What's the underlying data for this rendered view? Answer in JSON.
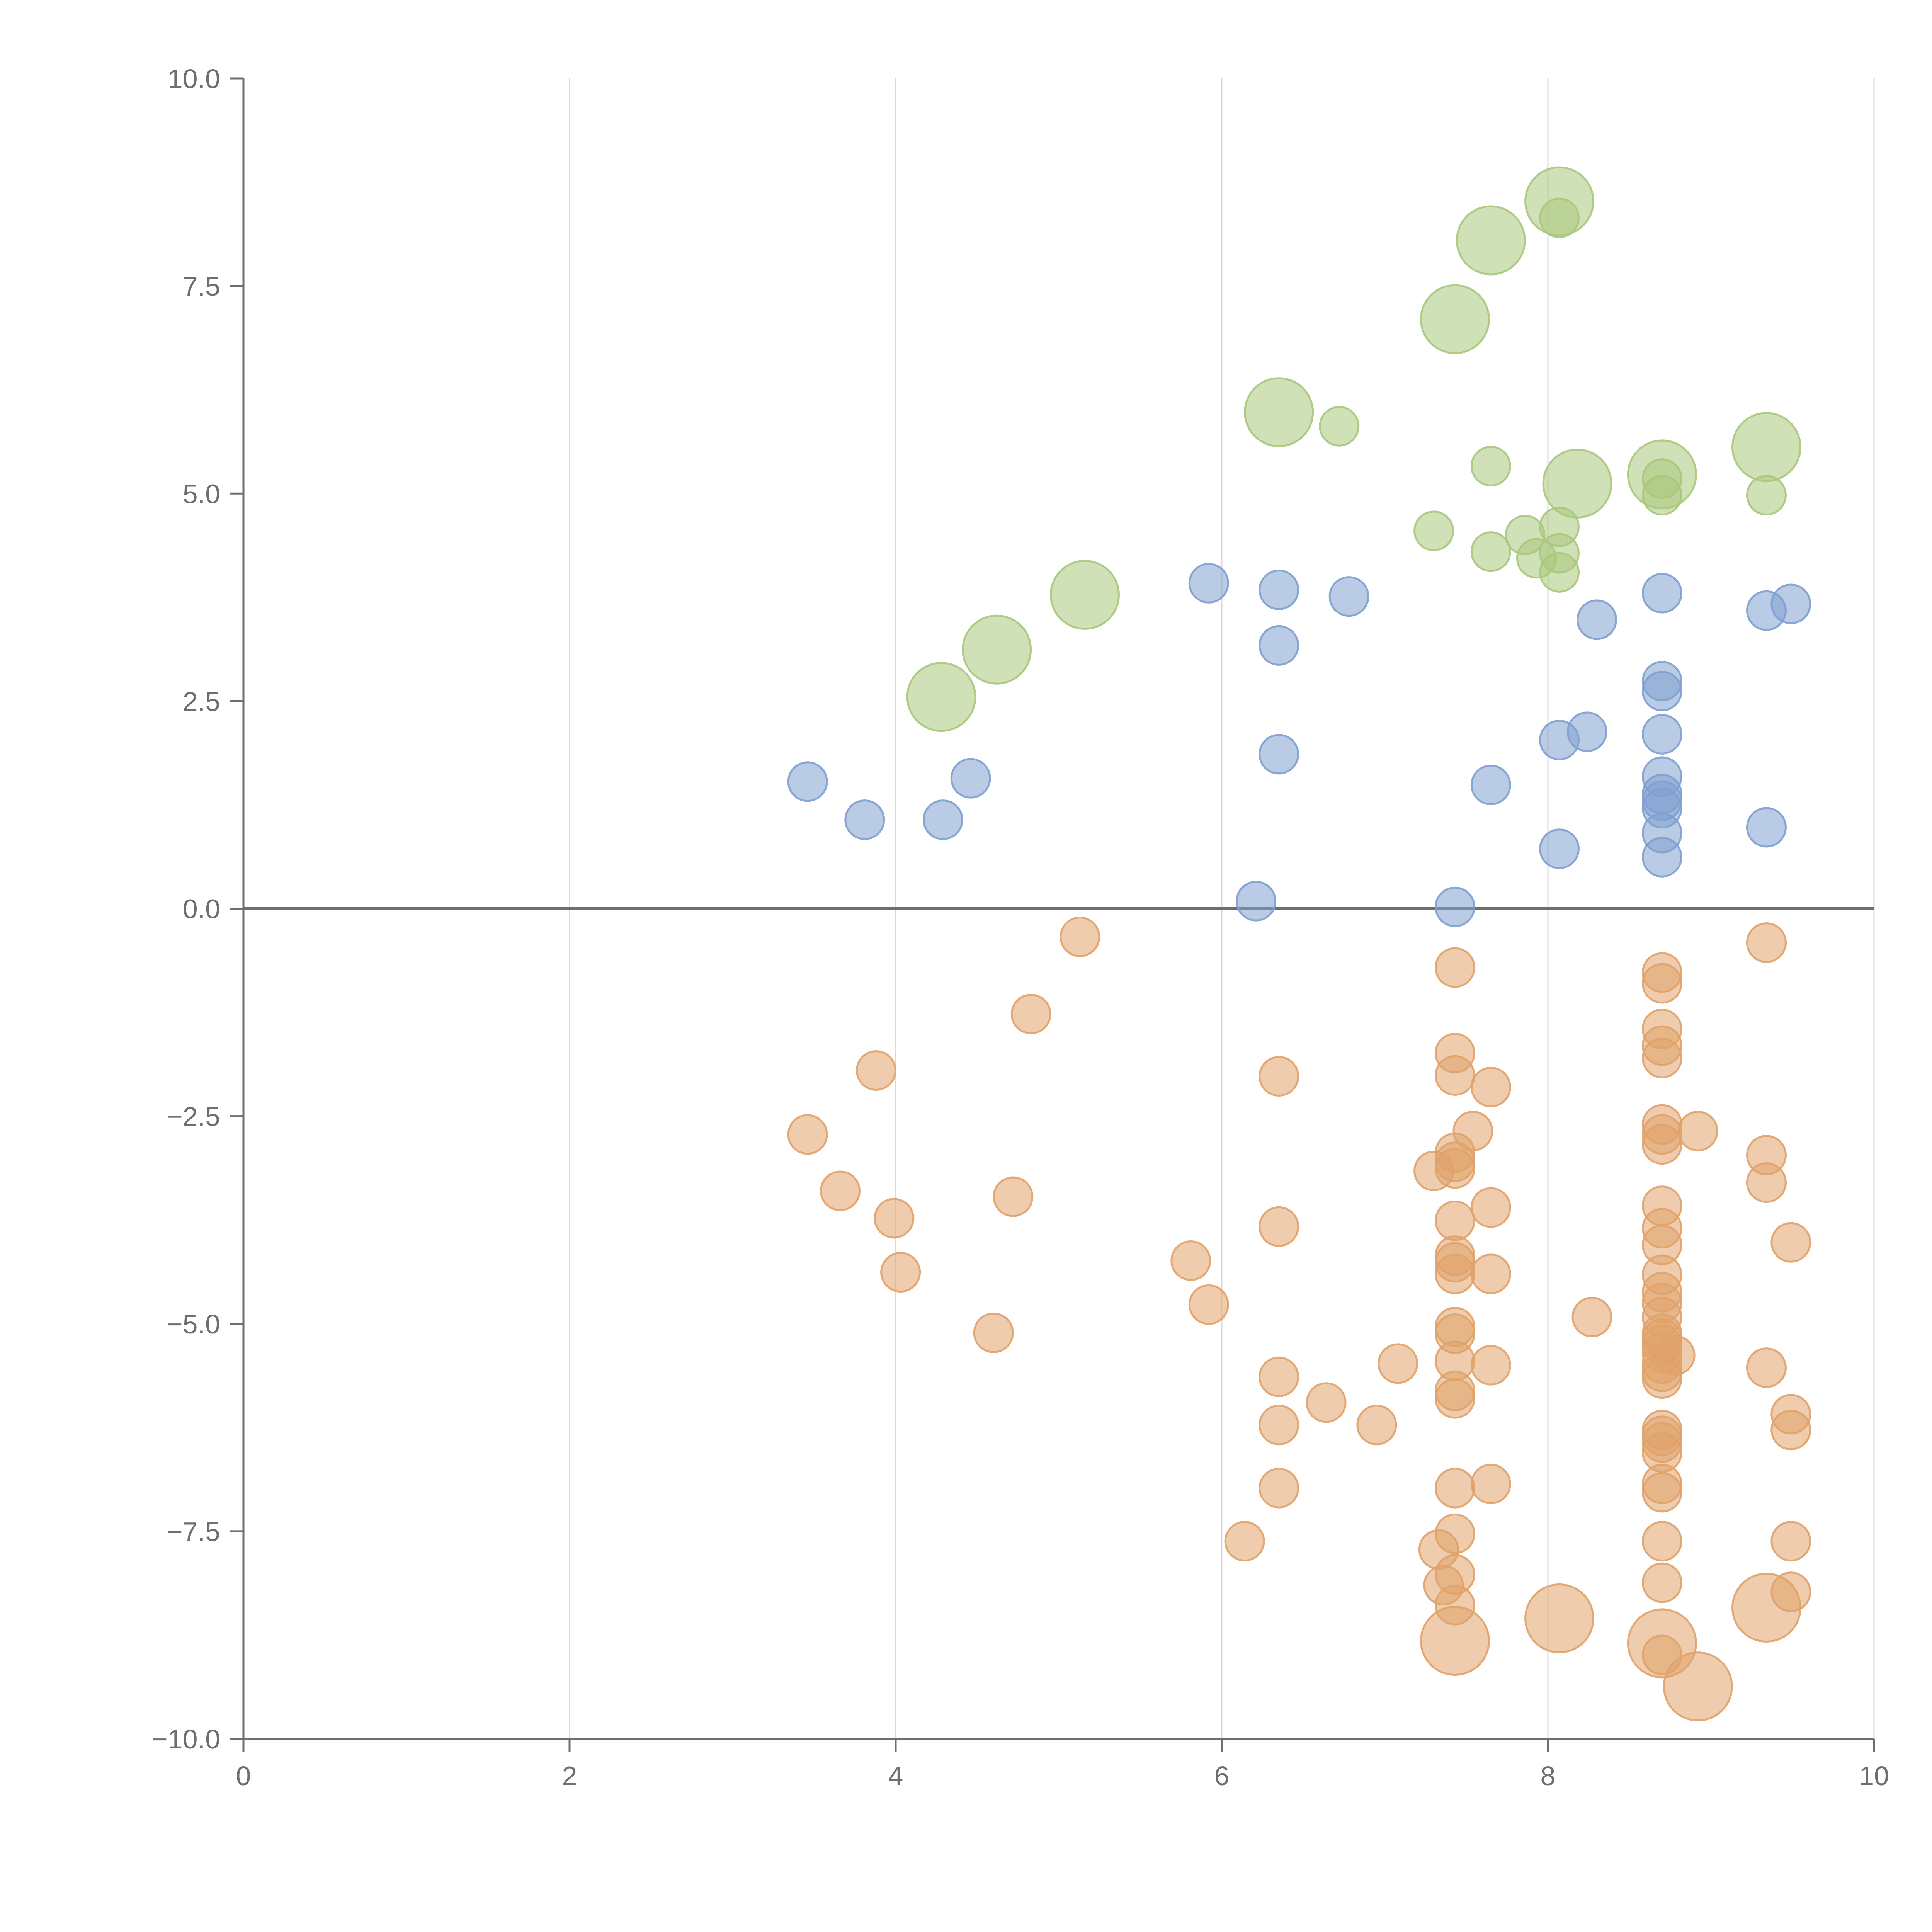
{
  "chart_data": {
    "type": "scatter",
    "title": "",
    "xlabel": "",
    "ylabel": "",
    "xlim": [
      0,
      10
    ],
    "ylim": [
      -10,
      10
    ],
    "x_ticks": [
      0,
      2,
      4,
      6,
      8,
      10
    ],
    "x_tick_labels": [
      "0",
      "2",
      "4",
      "6",
      "8",
      "10"
    ],
    "y_ticks": [
      -10,
      -7.5,
      -5,
      -2.5,
      0,
      2.5,
      5,
      7.5,
      10
    ],
    "y_tick_labels": [
      "−10.0",
      "−7.5",
      "−5.0",
      "−2.5",
      "0.0",
      "2.5",
      "5.0",
      "7.5",
      "10.0"
    ],
    "grid": "vertical",
    "reference_line_y": 0,
    "colors": {
      "green": "#a9c87c",
      "blue": "#7fa0cf",
      "orange": "#e0a26a",
      "axis": "#6e6e6e",
      "grid": "#d9d9d9"
    },
    "series": [
      {
        "name": "green",
        "color": "#a9c87c",
        "points": [
          {
            "x": 4.28,
            "y": 2.55,
            "s": 2
          },
          {
            "x": 4.62,
            "y": 3.12,
            "s": 2
          },
          {
            "x": 5.16,
            "y": 3.78,
            "s": 2
          },
          {
            "x": 6.35,
            "y": 5.98,
            "s": 2
          },
          {
            "x": 6.72,
            "y": 5.81,
            "s": 1
          },
          {
            "x": 7.3,
            "y": 4.55,
            "s": 1
          },
          {
            "x": 7.43,
            "y": 7.1,
            "s": 2
          },
          {
            "x": 7.65,
            "y": 8.05,
            "s": 2
          },
          {
            "x": 7.65,
            "y": 5.33,
            "s": 1
          },
          {
            "x": 7.65,
            "y": 4.3,
            "s": 1
          },
          {
            "x": 7.86,
            "y": 4.5,
            "s": 1
          },
          {
            "x": 7.93,
            "y": 4.22,
            "s": 1
          },
          {
            "x": 8.07,
            "y": 8.52,
            "s": 2
          },
          {
            "x": 8.07,
            "y": 8.32,
            "s": 1
          },
          {
            "x": 8.07,
            "y": 4.6,
            "s": 1
          },
          {
            "x": 8.07,
            "y": 4.28,
            "s": 1
          },
          {
            "x": 8.07,
            "y": 4.05,
            "s": 1
          },
          {
            "x": 8.18,
            "y": 5.12,
            "s": 2
          },
          {
            "x": 8.7,
            "y": 5.23,
            "s": 2
          },
          {
            "x": 8.7,
            "y": 5.18,
            "s": 1
          },
          {
            "x": 8.7,
            "y": 4.98,
            "s": 1
          },
          {
            "x": 9.34,
            "y": 5.56,
            "s": 2
          },
          {
            "x": 9.34,
            "y": 4.98,
            "s": 1
          }
        ]
      },
      {
        "name": "blue",
        "color": "#7fa0cf",
        "points": [
          {
            "x": 3.46,
            "y": 1.53,
            "s": 1
          },
          {
            "x": 3.81,
            "y": 1.07,
            "s": 1
          },
          {
            "x": 4.29,
            "y": 1.07,
            "s": 1
          },
          {
            "x": 4.46,
            "y": 1.57,
            "s": 1
          },
          {
            "x": 5.92,
            "y": 3.92,
            "s": 1
          },
          {
            "x": 6.21,
            "y": 0.09,
            "s": 1
          },
          {
            "x": 6.35,
            "y": 3.84,
            "s": 1
          },
          {
            "x": 6.35,
            "y": 3.17,
            "s": 1
          },
          {
            "x": 6.35,
            "y": 1.86,
            "s": 1
          },
          {
            "x": 6.78,
            "y": 3.76,
            "s": 1
          },
          {
            "x": 7.43,
            "y": 0.02,
            "s": 1
          },
          {
            "x": 7.65,
            "y": 1.49,
            "s": 1
          },
          {
            "x": 8.07,
            "y": 2.03,
            "s": 1
          },
          {
            "x": 8.07,
            "y": 0.72,
            "s": 1
          },
          {
            "x": 8.24,
            "y": 2.13,
            "s": 1
          },
          {
            "x": 8.3,
            "y": 3.48,
            "s": 1
          },
          {
            "x": 8.7,
            "y": 3.8,
            "s": 1
          },
          {
            "x": 8.7,
            "y": 2.74,
            "s": 1
          },
          {
            "x": 8.7,
            "y": 2.62,
            "s": 1
          },
          {
            "x": 8.7,
            "y": 2.1,
            "s": 1
          },
          {
            "x": 8.7,
            "y": 1.59,
            "s": 1
          },
          {
            "x": 8.7,
            "y": 1.38,
            "s": 1
          },
          {
            "x": 8.7,
            "y": 1.3,
            "s": 1
          },
          {
            "x": 8.7,
            "y": 1.21,
            "s": 1
          },
          {
            "x": 8.7,
            "y": 0.91,
            "s": 1
          },
          {
            "x": 8.7,
            "y": 0.62,
            "s": 1
          },
          {
            "x": 9.34,
            "y": 3.59,
            "s": 1
          },
          {
            "x": 9.34,
            "y": 0.98,
            "s": 1
          },
          {
            "x": 9.49,
            "y": 3.67,
            "s": 1
          }
        ]
      },
      {
        "name": "orange",
        "color": "#e0a26a",
        "points": [
          {
            "x": 3.46,
            "y": -2.72,
            "s": 1
          },
          {
            "x": 3.66,
            "y": -3.4,
            "s": 1
          },
          {
            "x": 3.88,
            "y": -1.95,
            "s": 1
          },
          {
            "x": 3.99,
            "y": -3.73,
            "s": 1
          },
          {
            "x": 4.03,
            "y": -4.38,
            "s": 1
          },
          {
            "x": 4.6,
            "y": -5.11,
            "s": 1
          },
          {
            "x": 4.72,
            "y": -3.47,
            "s": 1
          },
          {
            "x": 4.83,
            "y": -1.27,
            "s": 1
          },
          {
            "x": 5.13,
            "y": -0.34,
            "s": 1
          },
          {
            "x": 5.81,
            "y": -4.24,
            "s": 1
          },
          {
            "x": 5.92,
            "y": -4.77,
            "s": 1
          },
          {
            "x": 6.14,
            "y": -7.62,
            "s": 1
          },
          {
            "x": 6.35,
            "y": -2.02,
            "s": 1
          },
          {
            "x": 6.35,
            "y": -3.83,
            "s": 1
          },
          {
            "x": 6.35,
            "y": -5.64,
            "s": 1
          },
          {
            "x": 6.35,
            "y": -6.22,
            "s": 1
          },
          {
            "x": 6.35,
            "y": -6.98,
            "s": 1
          },
          {
            "x": 6.64,
            "y": -5.95,
            "s": 1
          },
          {
            "x": 6.95,
            "y": -6.22,
            "s": 1
          },
          {
            "x": 7.08,
            "y": -5.48,
            "s": 1
          },
          {
            "x": 7.3,
            "y": -3.16,
            "s": 1
          },
          {
            "x": 7.33,
            "y": -7.72,
            "s": 1
          },
          {
            "x": 7.36,
            "y": -8.15,
            "s": 1
          },
          {
            "x": 7.43,
            "y": -0.71,
            "s": 1
          },
          {
            "x": 7.43,
            "y": -1.74,
            "s": 1
          },
          {
            "x": 7.43,
            "y": -2.01,
            "s": 1
          },
          {
            "x": 7.43,
            "y": -2.94,
            "s": 1
          },
          {
            "x": 7.43,
            "y": -3.05,
            "s": 1
          },
          {
            "x": 7.43,
            "y": -3.13,
            "s": 1
          },
          {
            "x": 7.43,
            "y": -3.76,
            "s": 1
          },
          {
            "x": 7.43,
            "y": -4.18,
            "s": 1
          },
          {
            "x": 7.43,
            "y": -4.26,
            "s": 1
          },
          {
            "x": 7.43,
            "y": -4.4,
            "s": 1
          },
          {
            "x": 7.43,
            "y": -5.04,
            "s": 1
          },
          {
            "x": 7.43,
            "y": -5.12,
            "s": 1
          },
          {
            "x": 7.43,
            "y": -5.45,
            "s": 1
          },
          {
            "x": 7.43,
            "y": -5.81,
            "s": 1
          },
          {
            "x": 7.43,
            "y": -5.9,
            "s": 1
          },
          {
            "x": 7.43,
            "y": -6.98,
            "s": 1
          },
          {
            "x": 7.43,
            "y": -7.53,
            "s": 1
          },
          {
            "x": 7.43,
            "y": -8.02,
            "s": 1
          },
          {
            "x": 7.43,
            "y": -8.39,
            "s": 1
          },
          {
            "x": 7.43,
            "y": -8.82,
            "s": 2
          },
          {
            "x": 7.54,
            "y": -2.68,
            "s": 1
          },
          {
            "x": 7.65,
            "y": -2.15,
            "s": 1
          },
          {
            "x": 7.65,
            "y": -3.6,
            "s": 1
          },
          {
            "x": 7.65,
            "y": -4.4,
            "s": 1
          },
          {
            "x": 7.65,
            "y": -5.5,
            "s": 1
          },
          {
            "x": 7.65,
            "y": -6.93,
            "s": 1
          },
          {
            "x": 8.07,
            "y": -8.55,
            "s": 2
          },
          {
            "x": 8.27,
            "y": -4.92,
            "s": 1
          },
          {
            "x": 8.7,
            "y": -0.77,
            "s": 1
          },
          {
            "x": 8.7,
            "y": -0.9,
            "s": 1
          },
          {
            "x": 8.7,
            "y": -1.45,
            "s": 1
          },
          {
            "x": 8.7,
            "y": -1.65,
            "s": 1
          },
          {
            "x": 8.7,
            "y": -1.8,
            "s": 1
          },
          {
            "x": 8.7,
            "y": -2.6,
            "s": 1
          },
          {
            "x": 8.7,
            "y": -2.72,
            "s": 1
          },
          {
            "x": 8.7,
            "y": -2.84,
            "s": 1
          },
          {
            "x": 8.7,
            "y": -3.58,
            "s": 1
          },
          {
            "x": 8.7,
            "y": -3.85,
            "s": 1
          },
          {
            "x": 8.7,
            "y": -4.05,
            "s": 1
          },
          {
            "x": 8.7,
            "y": -4.41,
            "s": 1
          },
          {
            "x": 8.7,
            "y": -4.62,
            "s": 1
          },
          {
            "x": 8.7,
            "y": -4.75,
            "s": 1
          },
          {
            "x": 8.7,
            "y": -4.92,
            "s": 1
          },
          {
            "x": 8.7,
            "y": -5.12,
            "s": 1
          },
          {
            "x": 8.7,
            "y": -5.18,
            "s": 1
          },
          {
            "x": 8.7,
            "y": -5.25,
            "s": 1
          },
          {
            "x": 8.7,
            "y": -5.35,
            "s": 1
          },
          {
            "x": 8.7,
            "y": -5.48,
            "s": 1
          },
          {
            "x": 8.7,
            "y": -5.58,
            "s": 1
          },
          {
            "x": 8.7,
            "y": -5.66,
            "s": 1
          },
          {
            "x": 8.7,
            "y": -6.28,
            "s": 1
          },
          {
            "x": 8.7,
            "y": -6.35,
            "s": 1
          },
          {
            "x": 8.7,
            "y": -6.43,
            "s": 1
          },
          {
            "x": 8.7,
            "y": -6.55,
            "s": 1
          },
          {
            "x": 8.7,
            "y": -6.93,
            "s": 1
          },
          {
            "x": 8.7,
            "y": -7.03,
            "s": 1
          },
          {
            "x": 8.7,
            "y": -7.62,
            "s": 1
          },
          {
            "x": 8.7,
            "y": -8.12,
            "s": 1
          },
          {
            "x": 8.7,
            "y": -8.85,
            "s": 2
          },
          {
            "x": 8.7,
            "y": -8.99,
            "s": 1
          },
          {
            "x": 8.78,
            "y": -5.38,
            "s": 1
          },
          {
            "x": 8.92,
            "y": -2.68,
            "s": 1
          },
          {
            "x": 8.92,
            "y": -9.37,
            "s": 2
          },
          {
            "x": 9.34,
            "y": -0.41,
            "s": 1
          },
          {
            "x": 9.34,
            "y": -2.97,
            "s": 1
          },
          {
            "x": 9.34,
            "y": -3.3,
            "s": 1
          },
          {
            "x": 9.34,
            "y": -5.53,
            "s": 1
          },
          {
            "x": 9.34,
            "y": -8.42,
            "s": 2
          },
          {
            "x": 9.49,
            "y": -4.02,
            "s": 1
          },
          {
            "x": 9.49,
            "y": -6.09,
            "s": 1
          },
          {
            "x": 9.49,
            "y": -6.28,
            "s": 1
          },
          {
            "x": 9.49,
            "y": -7.62,
            "s": 1
          },
          {
            "x": 9.49,
            "y": -8.23,
            "s": 1
          }
        ]
      }
    ]
  }
}
